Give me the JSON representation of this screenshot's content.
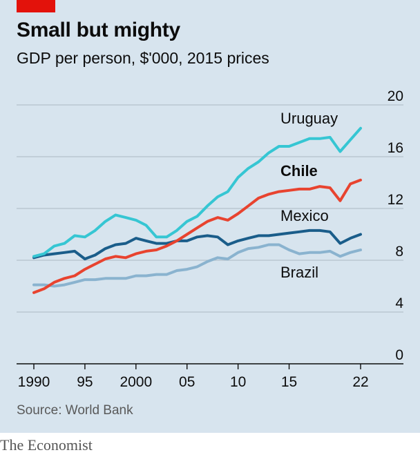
{
  "header": {
    "title": "Small but mighty",
    "subtitle": "GDP per person, $'000, 2015 prices"
  },
  "footer": {
    "source": "Source: World Bank",
    "brand": "The Economist"
  },
  "colors": {
    "background": "#d7e4ee",
    "accent": "#e3120b",
    "uruguay": "#36c6d3",
    "chile": "#e8432f",
    "mexico": "#1a5d8a",
    "brazil": "#8ab3cf",
    "grid": "#b4c1cb"
  },
  "chart_data": {
    "type": "line",
    "title": "Small but mighty",
    "subtitle": "GDP per person, $'000, 2015 prices",
    "xlabel": "",
    "ylabel": "",
    "x_range": [
      1990,
      2022
    ],
    "ylim": [
      0,
      20
    ],
    "y_ticks": [
      0,
      4,
      8,
      12,
      16,
      20
    ],
    "y_tick_labels": [
      "0",
      "4",
      "8",
      "12",
      "16",
      "20"
    ],
    "x_ticks": [
      1990,
      1995,
      2000,
      2005,
      2010,
      2015,
      2022
    ],
    "x_tick_labels": [
      "1990",
      "95",
      "2000",
      "05",
      "10",
      "15",
      "22"
    ],
    "grid": "horizontal",
    "legend": "direct labels on lines",
    "x": [
      1990,
      1991,
      1992,
      1993,
      1994,
      1995,
      1996,
      1997,
      1998,
      1999,
      2000,
      2001,
      2002,
      2003,
      2004,
      2005,
      2006,
      2007,
      2008,
      2009,
      2010,
      2011,
      2012,
      2013,
      2014,
      2015,
      2016,
      2017,
      2018,
      2019,
      2020,
      2021,
      2022
    ],
    "series": [
      {
        "name": "Uruguay",
        "key": "uruguay",
        "bold": false,
        "values": [
          8.3,
          8.5,
          9.1,
          9.3,
          9.9,
          9.8,
          10.3,
          11.0,
          11.5,
          11.3,
          11.1,
          10.7,
          9.8,
          9.8,
          10.3,
          11.0,
          11.4,
          12.2,
          12.9,
          13.3,
          14.4,
          15.1,
          15.6,
          16.3,
          16.8,
          16.8,
          17.1,
          17.4,
          17.4,
          17.5,
          16.4,
          17.3,
          18.2
        ]
      },
      {
        "name": "Chile",
        "key": "chile",
        "bold": true,
        "values": [
          5.5,
          5.8,
          6.3,
          6.6,
          6.8,
          7.3,
          7.7,
          8.1,
          8.3,
          8.2,
          8.5,
          8.7,
          8.8,
          9.1,
          9.5,
          10.0,
          10.5,
          11.0,
          11.3,
          11.1,
          11.6,
          12.2,
          12.8,
          13.1,
          13.3,
          13.4,
          13.5,
          13.5,
          13.7,
          13.6,
          12.6,
          13.9,
          14.2
        ]
      },
      {
        "name": "Mexico",
        "key": "mexico",
        "bold": false,
        "values": [
          8.2,
          8.4,
          8.5,
          8.6,
          8.7,
          8.1,
          8.4,
          8.9,
          9.2,
          9.3,
          9.7,
          9.5,
          9.3,
          9.3,
          9.5,
          9.5,
          9.8,
          9.9,
          9.8,
          9.2,
          9.5,
          9.7,
          9.9,
          9.9,
          10.0,
          10.1,
          10.2,
          10.3,
          10.3,
          10.2,
          9.3,
          9.7,
          10.0
        ]
      },
      {
        "name": "Brazil",
        "key": "brazil",
        "bold": false,
        "values": [
          6.1,
          6.1,
          6.0,
          6.1,
          6.3,
          6.5,
          6.5,
          6.6,
          6.6,
          6.6,
          6.8,
          6.8,
          6.9,
          6.9,
          7.2,
          7.3,
          7.5,
          7.9,
          8.2,
          8.1,
          8.6,
          8.9,
          9.0,
          9.2,
          9.2,
          8.8,
          8.5,
          8.6,
          8.6,
          8.7,
          8.3,
          8.6,
          8.8
        ]
      }
    ]
  }
}
